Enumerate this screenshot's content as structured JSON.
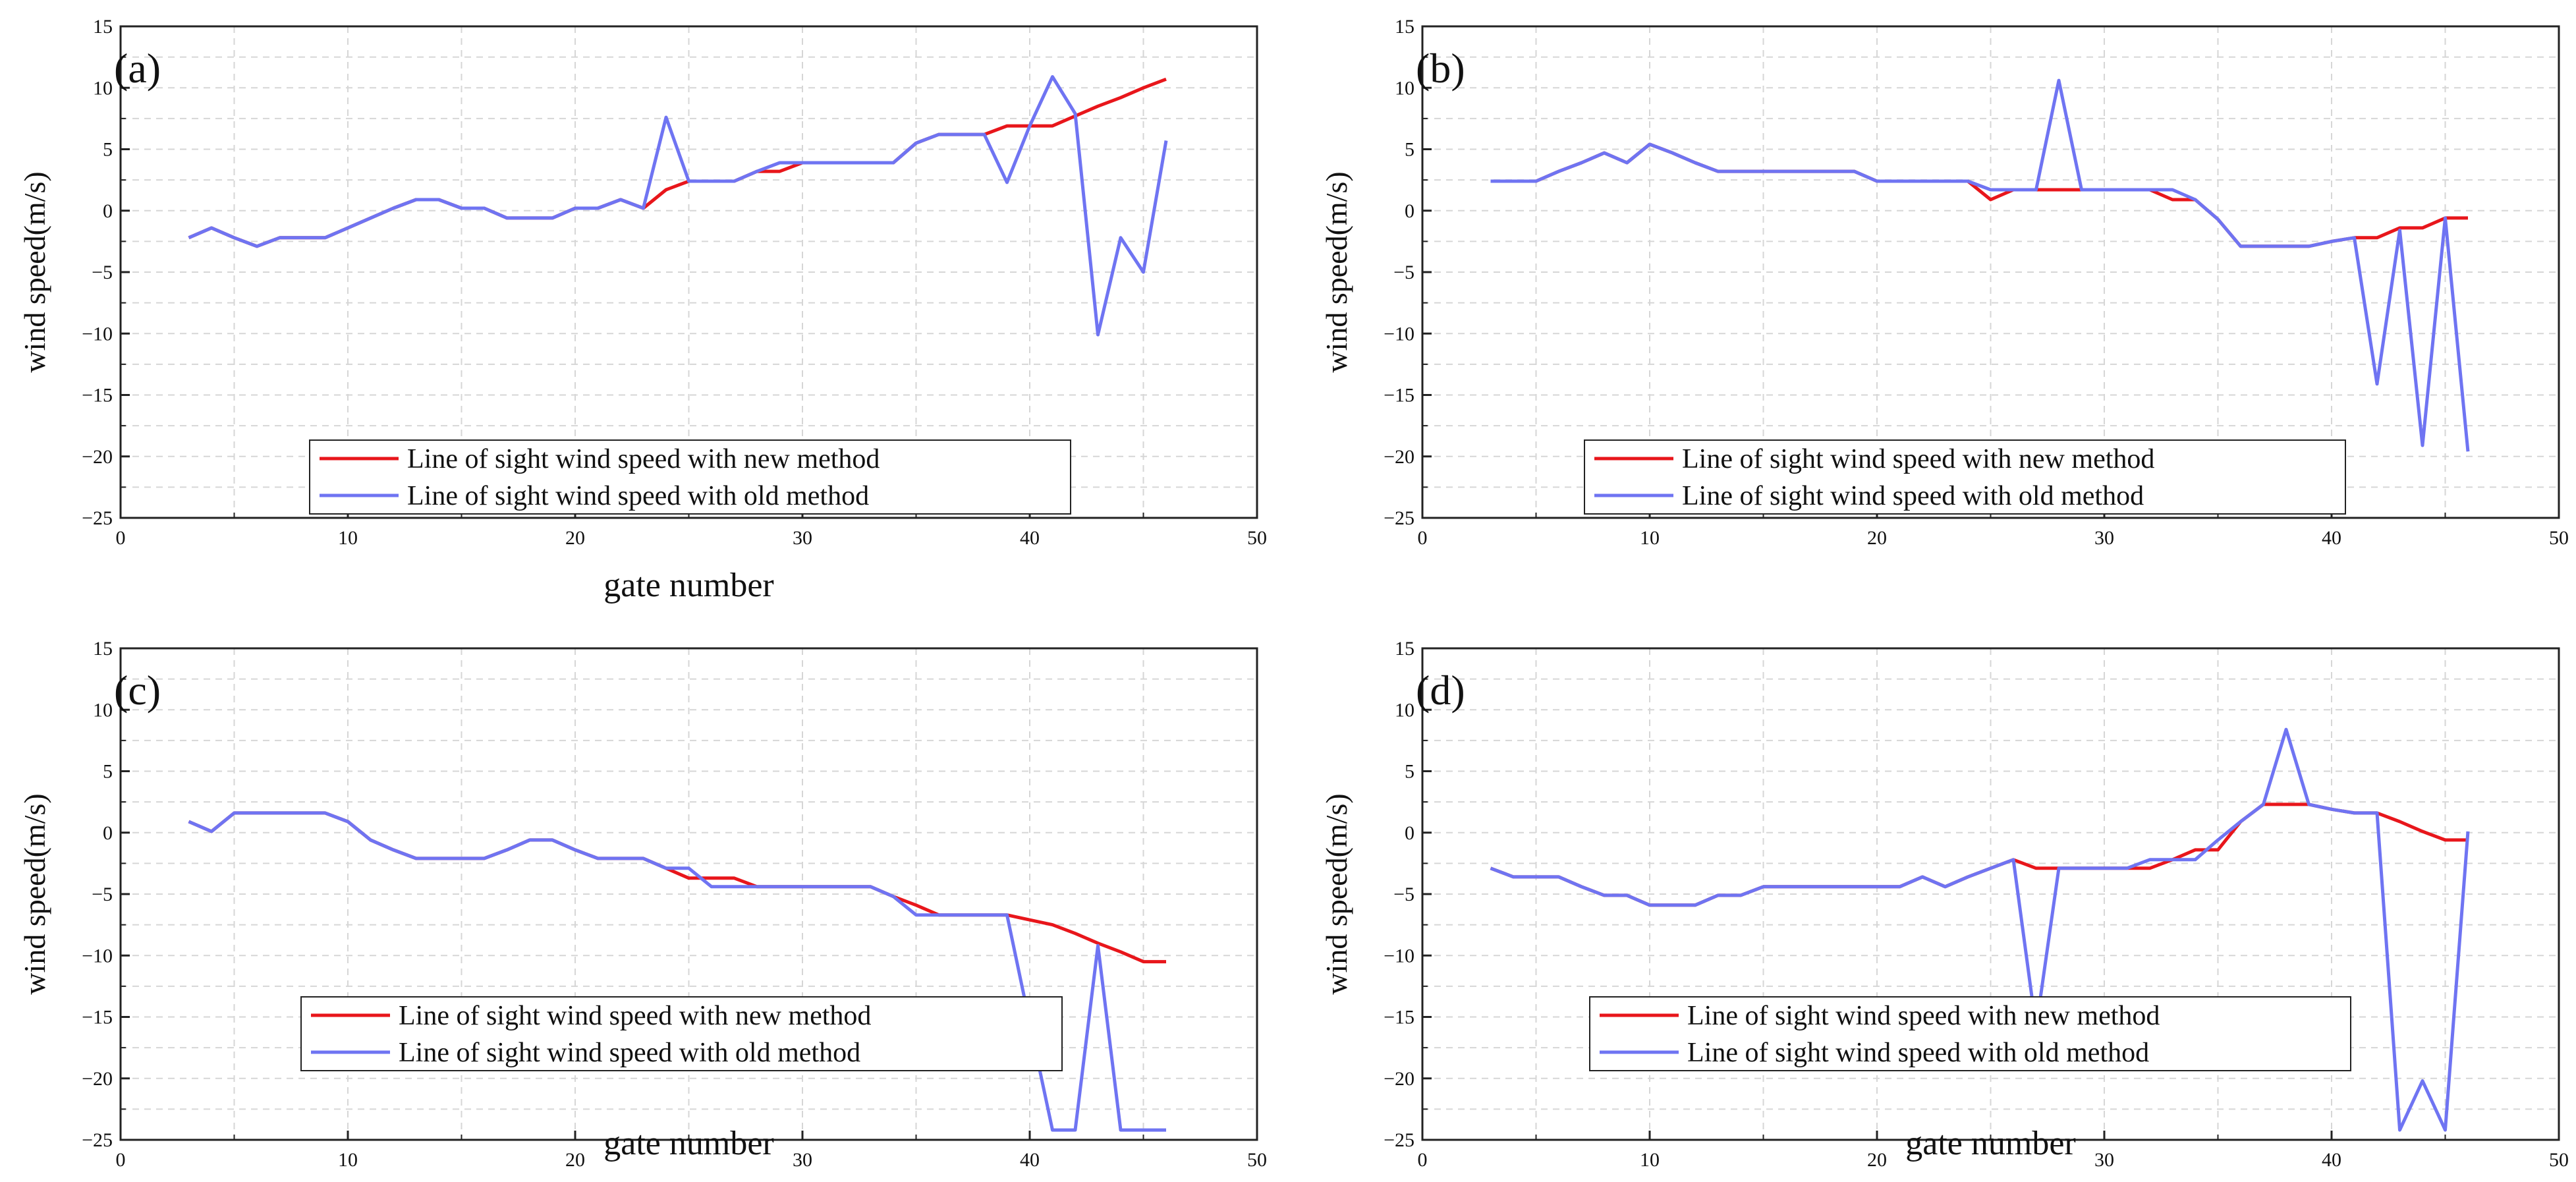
{
  "figure": {
    "colors": {
      "new": "#e8161b",
      "old": "#6f74f2",
      "grid": "#d6d6d6",
      "axis": "#222222"
    },
    "legend": {
      "new": "Line of sight wind speed with new method",
      "old": "Line of sight wind speed with old method"
    },
    "xlabel": "gate number",
    "ylabel": "wind speed(m/s)"
  },
  "chart_data": [
    {
      "type": "line",
      "label": "(a)",
      "xlim": [
        0,
        50
      ],
      "ylim": [
        -25,
        15
      ],
      "xticks": [
        0,
        10,
        20,
        30,
        40,
        50
      ],
      "yticks": [
        15,
        10,
        5,
        0,
        -5,
        -10,
        -15,
        -20,
        -25
      ],
      "xlabel": "gate number",
      "ylabel": "wind speed(m/s)",
      "x": [
        3,
        4,
        5,
        6,
        7,
        8,
        9,
        10,
        11,
        12,
        13,
        14,
        15,
        16,
        17,
        18,
        19,
        20,
        21,
        22,
        23,
        24,
        25,
        26,
        27,
        28,
        29,
        30,
        31,
        32,
        33,
        34,
        35,
        36,
        37,
        38,
        39,
        40,
        41,
        42,
        43,
        44,
        45,
        46
      ],
      "series": [
        {
          "name": "Line of sight wind speed with new method",
          "color": "#e8161b",
          "values": [
            -2.2,
            -1.4,
            -2.2,
            -2.9,
            -2.2,
            -2.2,
            -2.2,
            -1.4,
            -0.6,
            0.2,
            0.9,
            0.9,
            0.2,
            0.2,
            -0.6,
            -0.6,
            -0.6,
            0.2,
            0.2,
            0.9,
            0.2,
            1.7,
            2.4,
            2.4,
            2.4,
            3.2,
            3.2,
            3.9,
            3.9,
            3.9,
            3.9,
            3.9,
            5.5,
            6.2,
            6.2,
            6.2,
            6.9,
            6.9,
            6.9,
            7.7,
            8.5,
            9.2,
            10.0,
            10.7
          ]
        },
        {
          "name": "Line of sight wind speed with old method",
          "color": "#6f74f2",
          "values": [
            -2.2,
            -1.4,
            -2.2,
            -2.9,
            -2.2,
            -2.2,
            -2.2,
            -1.4,
            -0.6,
            0.2,
            0.9,
            0.9,
            0.2,
            0.2,
            -0.6,
            -0.6,
            -0.6,
            0.2,
            0.2,
            0.9,
            0.2,
            7.6,
            2.4,
            2.4,
            2.4,
            3.2,
            3.9,
            3.9,
            3.9,
            3.9,
            3.9,
            3.9,
            5.5,
            6.2,
            6.2,
            6.2,
            2.3,
            6.9,
            10.9,
            7.9,
            -10.1,
            -2.2,
            -5.0,
            5.7
          ]
        }
      ]
    },
    {
      "type": "line",
      "label": "(b)",
      "xlim": [
        0,
        50
      ],
      "ylim": [
        -25,
        15
      ],
      "xticks": [
        0,
        10,
        20,
        30,
        40,
        50
      ],
      "yticks": [
        15,
        10,
        5,
        0,
        -5,
        -10,
        -15,
        -20,
        -25
      ],
      "xlabel": "",
      "ylabel": "wind speed(m/s)",
      "x": [
        3,
        4,
        5,
        6,
        7,
        8,
        9,
        10,
        11,
        12,
        13,
        14,
        15,
        16,
        17,
        18,
        19,
        20,
        21,
        22,
        23,
        24,
        25,
        26,
        27,
        28,
        29,
        30,
        31,
        32,
        33,
        34,
        35,
        36,
        37,
        38,
        39,
        40,
        41,
        42,
        43,
        44,
        45,
        46
      ],
      "series": [
        {
          "name": "Line of sight wind speed with new method",
          "color": "#e8161b",
          "values": [
            2.4,
            2.4,
            2.4,
            3.2,
            3.9,
            4.7,
            3.9,
            5.4,
            4.7,
            3.9,
            3.2,
            3.2,
            3.2,
            3.2,
            3.2,
            3.2,
            3.2,
            2.4,
            2.4,
            2.4,
            2.4,
            2.4,
            0.9,
            1.7,
            1.7,
            1.7,
            1.7,
            1.7,
            1.7,
            1.7,
            0.9,
            0.9,
            -0.7,
            -2.9,
            -2.9,
            -2.9,
            -2.9,
            -2.5,
            -2.2,
            -2.2,
            -1.4,
            -1.4,
            -0.6,
            -0.6
          ]
        },
        {
          "name": "Line of sight wind speed with old method",
          "color": "#6f74f2",
          "values": [
            2.4,
            2.4,
            2.4,
            3.2,
            3.9,
            4.7,
            3.9,
            5.4,
            4.7,
            3.9,
            3.2,
            3.2,
            3.2,
            3.2,
            3.2,
            3.2,
            3.2,
            2.4,
            2.4,
            2.4,
            2.4,
            2.4,
            1.7,
            1.7,
            1.7,
            10.6,
            1.7,
            1.7,
            1.7,
            1.7,
            1.7,
            0.9,
            -0.7,
            -2.9,
            -2.9,
            -2.9,
            -2.9,
            -2.5,
            -2.2,
            -14.1,
            -1.6,
            -19.1,
            -0.6,
            -19.6
          ]
        }
      ]
    },
    {
      "type": "line",
      "label": "(c)",
      "xlim": [
        0,
        50
      ],
      "ylim": [
        -25,
        15
      ],
      "xticks": [
        0,
        10,
        20,
        30,
        40,
        50
      ],
      "yticks": [
        15,
        10,
        5,
        0,
        -5,
        -10,
        -15,
        -20,
        -25
      ],
      "xlabel": "gate number",
      "ylabel": "wind speed(m/s)",
      "x": [
        3,
        4,
        5,
        6,
        7,
        8,
        9,
        10,
        11,
        12,
        13,
        14,
        15,
        16,
        17,
        18,
        19,
        20,
        21,
        22,
        23,
        24,
        25,
        26,
        27,
        28,
        29,
        30,
        31,
        32,
        33,
        34,
        35,
        36,
        37,
        38,
        39,
        40,
        41,
        42,
        43,
        44,
        45,
        46
      ],
      "series": [
        {
          "name": "Line of sight wind speed with new method",
          "color": "#e8161b",
          "values": [
            0.9,
            0.1,
            1.6,
            1.6,
            1.6,
            1.6,
            1.6,
            0.9,
            -0.6,
            -1.4,
            -2.1,
            -2.1,
            -2.1,
            -2.1,
            -1.4,
            -0.6,
            -0.6,
            -1.4,
            -2.1,
            -2.1,
            -2.1,
            -2.9,
            -3.7,
            -3.7,
            -3.7,
            -4.4,
            -4.4,
            -4.4,
            -4.4,
            -4.4,
            -4.4,
            -5.2,
            -5.9,
            -6.7,
            -6.7,
            -6.7,
            -6.7,
            -7.1,
            -7.5,
            -8.2,
            -9.0,
            -9.7,
            -10.5,
            -10.5
          ]
        },
        {
          "name": "Line of sight wind speed with old method",
          "color": "#6f74f2",
          "values": [
            0.9,
            0.1,
            1.6,
            1.6,
            1.6,
            1.6,
            1.6,
            0.9,
            -0.6,
            -1.4,
            -2.1,
            -2.1,
            -2.1,
            -2.1,
            -1.4,
            -0.6,
            -0.6,
            -1.4,
            -2.1,
            -2.1,
            -2.1,
            -2.9,
            -2.9,
            -4.4,
            -4.4,
            -4.4,
            -4.4,
            -4.4,
            -4.4,
            -4.4,
            -4.4,
            -5.2,
            -6.7,
            -6.7,
            -6.7,
            -6.7,
            -6.7,
            -15.5,
            -24.2,
            -24.2,
            -9.2,
            -24.2,
            -24.2,
            -24.2
          ]
        }
      ]
    },
    {
      "type": "line",
      "label": "(d)",
      "xlim": [
        0,
        50
      ],
      "ylim": [
        -25,
        15
      ],
      "xticks": [
        0,
        10,
        20,
        30,
        40,
        50
      ],
      "yticks": [
        15,
        10,
        5,
        0,
        -5,
        -10,
        -15,
        -20,
        -25
      ],
      "xlabel": "gate number",
      "ylabel": "wind speed(m/s)",
      "x": [
        3,
        4,
        5,
        6,
        7,
        8,
        9,
        10,
        11,
        12,
        13,
        14,
        15,
        16,
        17,
        18,
        19,
        20,
        21,
        22,
        23,
        24,
        25,
        26,
        27,
        28,
        29,
        30,
        31,
        32,
        33,
        34,
        35,
        36,
        37,
        38,
        39,
        40,
        41,
        42,
        43,
        44,
        45,
        46
      ],
      "series": [
        {
          "name": "Line of sight wind speed with new method",
          "color": "#e8161b",
          "values": [
            -2.9,
            -3.6,
            -3.6,
            -3.6,
            -4.4,
            -5.1,
            -5.1,
            -5.9,
            -5.9,
            -5.9,
            -5.1,
            -5.1,
            -4.4,
            -4.4,
            -4.4,
            -4.4,
            -4.4,
            -4.4,
            -4.4,
            -3.6,
            -4.4,
            -3.6,
            -2.9,
            -2.2,
            -2.9,
            -2.9,
            -2.9,
            -2.9,
            -2.9,
            -2.9,
            -2.2,
            -1.4,
            -1.4,
            0.9,
            2.3,
            2.3,
            2.3,
            1.9,
            1.6,
            1.6,
            0.9,
            0.1,
            -0.6,
            -0.6
          ]
        },
        {
          "name": "Line of sight wind speed with old method",
          "color": "#6f74f2",
          "values": [
            -2.9,
            -3.6,
            -3.6,
            -3.6,
            -4.4,
            -5.1,
            -5.1,
            -5.9,
            -5.9,
            -5.9,
            -5.1,
            -5.1,
            -4.4,
            -4.4,
            -4.4,
            -4.4,
            -4.4,
            -4.4,
            -4.4,
            -3.6,
            -4.4,
            -3.6,
            -2.9,
            -2.2,
            -15.9,
            -2.9,
            -2.9,
            -2.9,
            -2.9,
            -2.2,
            -2.2,
            -2.2,
            -0.6,
            0.9,
            2.3,
            8.4,
            2.3,
            1.9,
            1.6,
            1.6,
            -24.2,
            -20.2,
            -24.2,
            0.1
          ]
        }
      ]
    }
  ]
}
